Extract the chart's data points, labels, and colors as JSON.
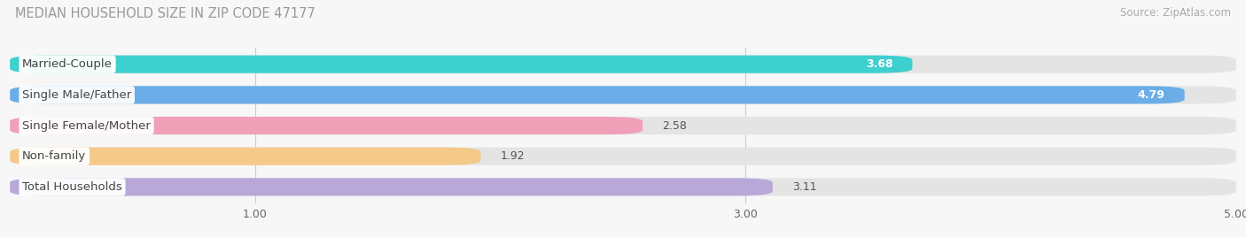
{
  "title": "MEDIAN HOUSEHOLD SIZE IN ZIP CODE 47177",
  "source": "Source: ZipAtlas.com",
  "categories": [
    "Married-Couple",
    "Single Male/Father",
    "Single Female/Mother",
    "Non-family",
    "Total Households"
  ],
  "values": [
    3.68,
    4.79,
    2.58,
    1.92,
    3.11
  ],
  "bar_colors": [
    "#3ecfcf",
    "#6aade8",
    "#f0a0b8",
    "#f5c98a",
    "#b8a8d8"
  ],
  "xmin": 0.0,
  "xmax": 5.0,
  "xticks": [
    1.0,
    3.0,
    5.0
  ],
  "background_color": "#f7f7f7",
  "bar_bg_color": "#e4e4e4",
  "title_fontsize": 10.5,
  "source_fontsize": 8.5,
  "label_fontsize": 9.5,
  "value_fontsize": 9,
  "tick_fontsize": 9,
  "bar_height": 0.58,
  "value_inside_threshold": 3.5
}
